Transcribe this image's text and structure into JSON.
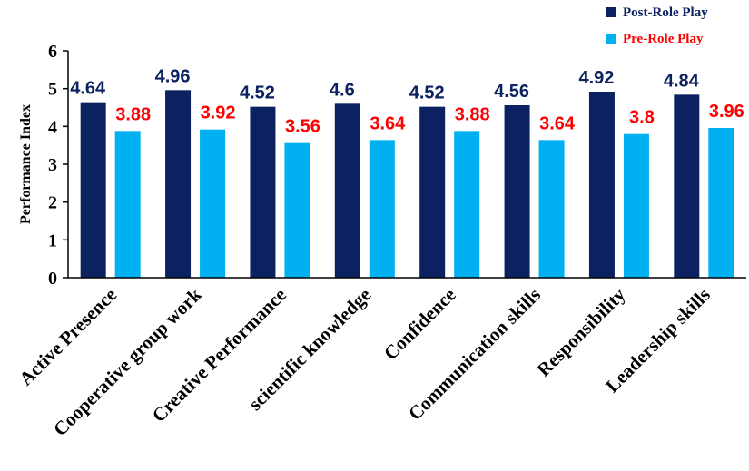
{
  "chart_data": {
    "type": "bar",
    "title": "",
    "xlabel": "",
    "ylabel": "Performance Index",
    "ylim": [
      0,
      6
    ],
    "yticks": [
      0,
      1,
      2,
      3,
      4,
      5,
      6
    ],
    "grid": false,
    "legend_position": "top-right",
    "categories": [
      "Active Presence",
      "Cooperative group work",
      "Creative Performance",
      "scientific knowledge",
      "Confidence",
      "Communication skills",
      "Responsibility",
      "Leadership skills"
    ],
    "series": [
      {
        "name": "Post-Role Play",
        "color": "#0b2160",
        "label_color": "#0b2160",
        "values": [
          4.64,
          4.96,
          4.52,
          4.6,
          4.52,
          4.56,
          4.92,
          4.84
        ]
      },
      {
        "name": "Pre-Role Play",
        "color": "#00b0f0",
        "label_color": "#ff0000",
        "values": [
          3.88,
          3.92,
          3.56,
          3.64,
          3.88,
          3.64,
          3.8,
          3.96
        ]
      }
    ]
  }
}
